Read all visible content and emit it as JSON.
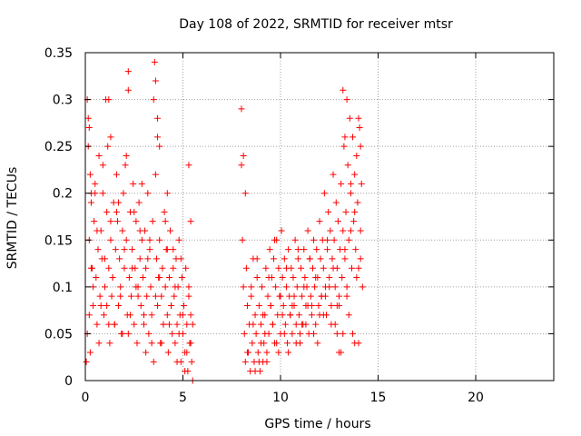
{
  "chart_data": {
    "type": "scatter",
    "title": "Day 108 of 2022, SRMTID for receiver mtsr",
    "xlabel": "GPS time / hours",
    "ylabel": "SRMTID / TECUs",
    "xlim": [
      0,
      24
    ],
    "ylim": [
      0,
      0.35
    ],
    "xticks": [
      0,
      5,
      10,
      15,
      20
    ],
    "xtick_labels": [
      "0",
      "5",
      "10",
      "15",
      "20"
    ],
    "yticks": [
      0,
      0.05,
      0.1,
      0.15,
      0.2,
      0.25,
      0.3,
      0.35
    ],
    "ytick_labels": [
      "0",
      "0.05",
      "0.1",
      "0.15",
      "0.2",
      "0.25",
      "0.3",
      "0.35"
    ],
    "grid": true,
    "marker": "plus",
    "series": [
      {
        "name": "SRMTID",
        "color": "#ff0000",
        "x": [
          0.05,
          0.1,
          0.15,
          0.2,
          0.25,
          0.3,
          0.35,
          0.4,
          0.45,
          0.5,
          0.55,
          0.6,
          0.65,
          0.7,
          0.75,
          0.8,
          0.85,
          0.9,
          0.95,
          1.0,
          1.05,
          1.1,
          1.15,
          1.2,
          1.25,
          1.3,
          1.35,
          1.4,
          1.45,
          1.5,
          1.55,
          1.6,
          1.65,
          1.7,
          1.75,
          1.8,
          1.85,
          1.9,
          1.95,
          2.0,
          2.05,
          2.1,
          2.15,
          2.2,
          2.25,
          2.3,
          2.35,
          2.4,
          2.45,
          2.5,
          2.55,
          2.6,
          2.65,
          2.7,
          2.75,
          2.8,
          2.85,
          2.9,
          2.95,
          3.0,
          3.05,
          3.1,
          3.15,
          3.2,
          3.25,
          3.3,
          3.35,
          3.4,
          3.45,
          3.5,
          3.55,
          3.6,
          3.65,
          3.7,
          3.75,
          3.8,
          3.85,
          3.9,
          3.95,
          4.0,
          4.05,
          4.1,
          4.15,
          4.2,
          4.25,
          4.3,
          4.35,
          4.4,
          4.45,
          4.5,
          4.55,
          4.6,
          4.65,
          4.7,
          4.75,
          4.8,
          4.85,
          4.9,
          4.95,
          5.0,
          5.05,
          5.1,
          5.15,
          5.2,
          5.25,
          5.3,
          5.35,
          5.4,
          5.45,
          5.5,
          0.2,
          0.3,
          0.4,
          0.6,
          0.8,
          1.0,
          1.2,
          1.4,
          1.6,
          1.8,
          2.0,
          2.2,
          2.4,
          2.6,
          2.8,
          3.0,
          3.2,
          3.4,
          3.6,
          3.8,
          4.0,
          4.2,
          4.4,
          4.6,
          4.8,
          5.0,
          5.2,
          5.4,
          0.15,
          0.5,
          0.9,
          1.3,
          1.7,
          2.1,
          2.5,
          2.9,
          3.3,
          3.7,
          4.1,
          4.5,
          4.9,
          5.3,
          0.25,
          0.7,
          1.1,
          1.5,
          1.9,
          2.3,
          2.7,
          3.1,
          3.5,
          3.9,
          4.3,
          4.7,
          5.1,
          5.5,
          0.1,
          0.2,
          0.3,
          1.2,
          1.3,
          2.2,
          3.6,
          3.7,
          3.8,
          4.2,
          5.3,
          5.4,
          8.0,
          8.05,
          8.1,
          8.15,
          8.2,
          8.25,
          8.3,
          8.35,
          8.4,
          8.45,
          8.5,
          8.55,
          8.6,
          8.65,
          8.7,
          8.75,
          8.8,
          8.85,
          8.9,
          8.95,
          9.0,
          9.05,
          9.1,
          9.15,
          9.2,
          9.25,
          9.3,
          9.35,
          9.4,
          9.45,
          9.5,
          9.55,
          9.6,
          9.65,
          9.7,
          9.75,
          9.8,
          9.85,
          9.9,
          9.95,
          10.0,
          10.05,
          10.1,
          10.15,
          10.2,
          10.25,
          10.3,
          10.35,
          10.4,
          10.45,
          10.5,
          10.55,
          10.6,
          10.65,
          10.7,
          10.75,
          10.8,
          10.85,
          10.9,
          10.95,
          11.0,
          11.05,
          11.1,
          11.15,
          11.2,
          11.25,
          11.3,
          11.35,
          11.4,
          11.45,
          11.5,
          11.55,
          11.6,
          11.65,
          11.7,
          11.75,
          11.8,
          11.85,
          11.9,
          11.95,
          12.0,
          12.05,
          12.1,
          12.15,
          12.2,
          12.25,
          12.3,
          12.35,
          12.4,
          12.45,
          12.5,
          12.55,
          12.6,
          12.65,
          12.7,
          12.75,
          12.8,
          12.85,
          12.9,
          12.95,
          13.0,
          13.05,
          13.1,
          13.15,
          13.2,
          13.25,
          13.3,
          13.35,
          13.4,
          13.45,
          13.5,
          13.55,
          13.6,
          13.65,
          13.7,
          13.75,
          13.8,
          13.85,
          13.9,
          13.95,
          14.0,
          14.05,
          14.1,
          14.15,
          14.2,
          8.3,
          8.6,
          8.9,
          9.2,
          9.5,
          9.8,
          10.1,
          10.4,
          10.7,
          11.0,
          11.3,
          11.6,
          11.9,
          12.2,
          12.5,
          12.8,
          13.1,
          13.4,
          13.7,
          14.0,
          8.5,
          8.8,
          9.1,
          9.4,
          9.7,
          10.0,
          10.3,
          10.6,
          10.9,
          11.2,
          11.5,
          11.8,
          12.1,
          12.4,
          12.7,
          13.0,
          13.3,
          13.6,
          13.9,
          14.1,
          8.7,
          9.0,
          9.3,
          9.6,
          9.9,
          10.2,
          10.5,
          10.8,
          11.1,
          11.4,
          11.7,
          12.0,
          12.3,
          12.6,
          12.9,
          13.2,
          13.5,
          13.8,
          8.0,
          8.1,
          8.2,
          13.2,
          13.3,
          13.4,
          13.6,
          13.8,
          14.0,
          14.1,
          12.9,
          13.0
        ],
        "y": [
          0.02,
          0.05,
          0.28,
          0.15,
          0.22,
          0.19,
          0.12,
          0.08,
          0.17,
          0.21,
          0.11,
          0.06,
          0.14,
          0.24,
          0.09,
          0.16,
          0.13,
          0.2,
          0.07,
          0.1,
          0.3,
          0.18,
          0.25,
          0.12,
          0.04,
          0.15,
          0.09,
          0.11,
          0.19,
          0.06,
          0.14,
          0.22,
          0.17,
          0.08,
          0.13,
          0.1,
          0.05,
          0.16,
          0.2,
          0.12,
          0.23,
          0.15,
          0.07,
          0.33,
          0.11,
          0.18,
          0.09,
          0.14,
          0.21,
          0.06,
          0.12,
          0.17,
          0.04,
          0.1,
          0.19,
          0.13,
          0.08,
          0.15,
          0.11,
          0.06,
          0.16,
          0.12,
          0.09,
          0.2,
          0.05,
          0.14,
          0.1,
          0.07,
          0.17,
          0.3,
          0.34,
          0.22,
          0.13,
          0.08,
          0.11,
          0.15,
          0.04,
          0.09,
          0.12,
          0.06,
          0.18,
          0.1,
          0.14,
          0.07,
          0.03,
          0.11,
          0.16,
          0.08,
          0.05,
          0.12,
          0.09,
          0.04,
          0.13,
          0.06,
          0.1,
          0.15,
          0.07,
          0.02,
          0.11,
          0.05,
          0.08,
          0.03,
          0.12,
          0.06,
          0.01,
          0.09,
          0.04,
          0.07,
          0.02,
          0.0,
          0.07,
          0.12,
          0.1,
          0.16,
          0.08,
          0.13,
          0.06,
          0.11,
          0.18,
          0.09,
          0.14,
          0.05,
          0.12,
          0.1,
          0.16,
          0.07,
          0.13,
          0.04,
          0.09,
          0.11,
          0.06,
          0.14,
          0.08,
          0.1,
          0.05,
          0.07,
          0.03,
          0.04,
          0.25,
          0.2,
          0.23,
          0.17,
          0.19,
          0.24,
          0.18,
          0.21,
          0.15,
          0.26,
          0.17,
          0.14,
          0.13,
          0.1,
          0.03,
          0.04,
          0.08,
          0.06,
          0.05,
          0.07,
          0.09,
          0.03,
          0.02,
          0.04,
          0.06,
          0.02,
          0.01,
          0.06,
          0.3,
          0.27,
          0.2,
          0.3,
          0.26,
          0.31,
          0.32,
          0.28,
          0.25,
          0.2,
          0.23,
          0.17,
          0.23,
          0.15,
          0.1,
          0.05,
          0.02,
          0.12,
          0.08,
          0.03,
          0.06,
          0.01,
          0.09,
          0.04,
          0.13,
          0.02,
          0.07,
          0.05,
          0.11,
          0.03,
          0.08,
          0.01,
          0.06,
          0.1,
          0.02,
          0.04,
          0.07,
          0.12,
          0.03,
          0.09,
          0.05,
          0.14,
          0.08,
          0.11,
          0.06,
          0.13,
          0.04,
          0.1,
          0.15,
          0.07,
          0.12,
          0.09,
          0.05,
          0.16,
          0.11,
          0.08,
          0.13,
          0.06,
          0.1,
          0.04,
          0.14,
          0.09,
          0.07,
          0.12,
          0.05,
          0.11,
          0.08,
          0.15,
          0.06,
          0.1,
          0.13,
          0.07,
          0.04,
          0.12,
          0.09,
          0.06,
          0.14,
          0.11,
          0.08,
          0.1,
          0.16,
          0.05,
          0.13,
          0.09,
          0.07,
          0.12,
          0.15,
          0.1,
          0.06,
          0.14,
          0.11,
          0.08,
          0.17,
          0.13,
          0.09,
          0.15,
          0.12,
          0.2,
          0.1,
          0.07,
          0.14,
          0.18,
          0.11,
          0.16,
          0.08,
          0.13,
          0.22,
          0.15,
          0.1,
          0.19,
          0.12,
          0.17,
          0.09,
          0.14,
          0.21,
          0.11,
          0.16,
          0.25,
          0.13,
          0.18,
          0.1,
          0.23,
          0.15,
          0.28,
          0.2,
          0.12,
          0.26,
          0.17,
          0.22,
          0.14,
          0.24,
          0.19,
          0.12,
          0.27,
          0.16,
          0.21,
          0.1,
          0.03,
          0.06,
          0.02,
          0.05,
          0.08,
          0.04,
          0.07,
          0.03,
          0.09,
          0.05,
          0.06,
          0.08,
          0.04,
          0.07,
          0.1,
          0.06,
          0.03,
          0.09,
          0.05,
          0.04,
          0.1,
          0.13,
          0.07,
          0.11,
          0.15,
          0.09,
          0.12,
          0.08,
          0.14,
          0.1,
          0.13,
          0.11,
          0.09,
          0.15,
          0.12,
          0.08,
          0.14,
          0.16,
          0.11,
          0.13,
          0.01,
          0.04,
          0.02,
          0.06,
          0.03,
          0.05,
          0.07,
          0.04,
          0.06,
          0.08,
          0.05,
          0.07,
          0.09,
          0.06,
          0.08,
          0.05,
          0.07,
          0.04,
          0.29,
          0.24,
          0.2,
          0.31,
          0.26,
          0.3,
          0.21,
          0.18,
          0.28,
          0.25,
          0.05,
          0.03
        ]
      }
    ]
  }
}
